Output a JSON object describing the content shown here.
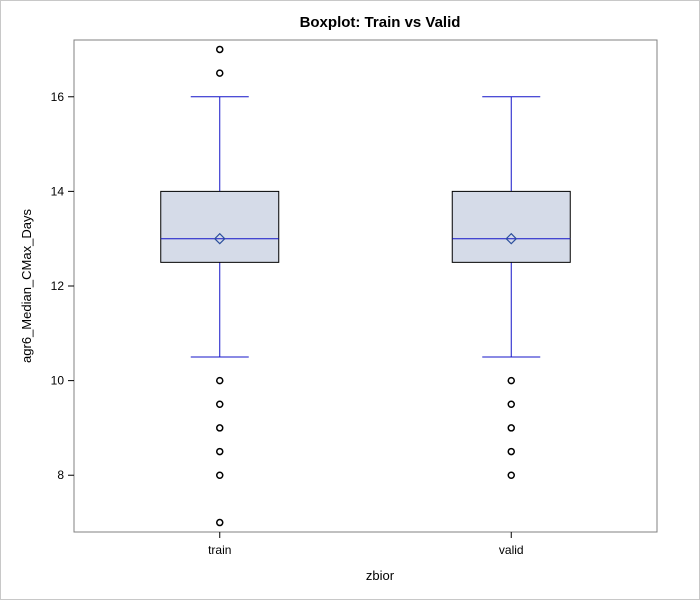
{
  "chart_data": {
    "type": "boxplot",
    "title": "Boxplot: Train vs Valid",
    "xlabel": "zbior",
    "ylabel": "agr6_Median_CMax_Days",
    "ylim": [
      6.8,
      17.2
    ],
    "yticks": [
      "8",
      "10",
      "12",
      "14",
      "16"
    ],
    "yticks_values": [
      8,
      10,
      12,
      14,
      16
    ],
    "grid": false,
    "colors": {
      "box_fill": "#d5dbe8",
      "box_border": "#000000",
      "whisker": "#1414c8",
      "median": "#1414c8",
      "mean_marker": "#2c4f9c",
      "outlier": "#000000",
      "frame": "#808080"
    },
    "categories": [
      "train",
      "valid"
    ],
    "series": [
      {
        "category": "train",
        "q1": 12.5,
        "median": 13,
        "q3": 14,
        "mean": 13,
        "whisker_low": 10.5,
        "whisker_high": 16,
        "outliers": [
          7,
          8,
          8.5,
          9,
          9.5,
          10,
          16.5,
          17
        ]
      },
      {
        "category": "valid",
        "q1": 12.5,
        "median": 13,
        "q3": 14,
        "mean": 13,
        "whisker_low": 10.5,
        "whisker_high": 16,
        "outliers": [
          8,
          8.5,
          9,
          9.5,
          10
        ]
      }
    ]
  }
}
